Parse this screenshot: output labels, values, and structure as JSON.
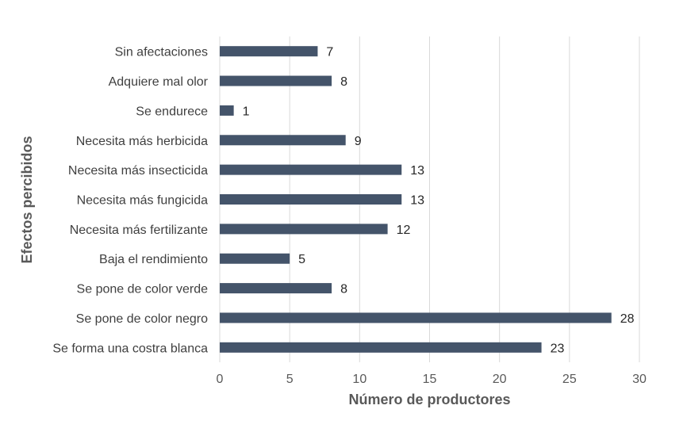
{
  "chart_data": {
    "type": "bar",
    "orientation": "horizontal",
    "title": "",
    "xlabel": "Número de productores",
    "ylabel": "Efectos percibidos",
    "xlim": [
      0,
      30
    ],
    "xticks": [
      0,
      5,
      10,
      15,
      20,
      25,
      30
    ],
    "grid": true,
    "legend": "none",
    "bar_color": "#44546a",
    "categories": [
      "Sin afectaciones",
      "Adquiere mal olor",
      "Se endurece",
      "Necesita más herbicida",
      "Necesita más insecticida",
      "Necesita más fungicida",
      "Necesita más fertilizante",
      "Baja el rendimiento",
      "Se pone de color verde",
      "Se pone de color negro ",
      "Se forma una costra blanca"
    ],
    "values": [
      7,
      8,
      1,
      9,
      13,
      13,
      12,
      5,
      8,
      28,
      23
    ]
  }
}
